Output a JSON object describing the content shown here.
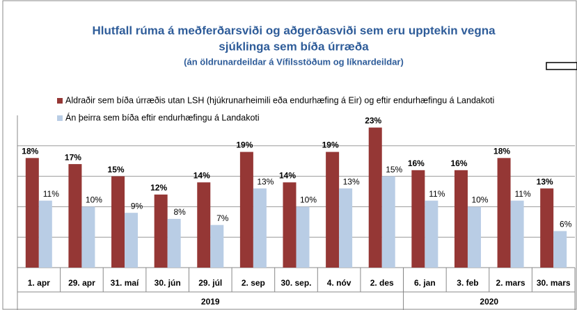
{
  "chart_data": {
    "type": "bar",
    "title": "Hlutfall rúma á meðferðarsviði og aðgerðasviði sem eru upptekin  vegna sjúklinga sem bíða úrræða",
    "title_lines": [
      "Hlutfall rúma á meðferðarsviði og aðgerðasviði sem eru upptekin  vegna",
      "sjúklinga sem bíða úrræða"
    ],
    "subtitle": "(án öldrunardeildar á Vífilsstöðum og líknardeildar)",
    "categories": [
      "1. apr",
      "29. apr",
      "31. maí",
      "30. jún",
      "29. júl",
      "2. sep",
      "30. sep.",
      "4. nóv",
      "2. des",
      "6. jan",
      "3. feb",
      "2. mars",
      "30. mars"
    ],
    "groups": [
      {
        "label": "2019",
        "count": 9
      },
      {
        "label": "2020",
        "count": 4
      }
    ],
    "series": [
      {
        "name": "Aldraðir sem bíða úrræðis utan LSH (hjúkrunarheimili eða endurhæfing á Eir) og eftir endurhæfingu á Landakoti",
        "color": "#953735",
        "values": [
          18,
          17,
          15,
          12,
          14,
          19,
          14,
          19,
          23,
          16,
          16,
          18,
          13
        ],
        "value_labels": [
          "18%",
          "17%",
          "15%",
          "12%",
          "14%",
          "19%",
          "14%",
          "19%",
          "23%",
          "16%",
          "16%",
          "18%",
          "13%"
        ]
      },
      {
        "name": "Án þeirra sem bíða eftir endurhæfingu á Landakoti",
        "color": "#b9cde5",
        "values": [
          11,
          10,
          9,
          8,
          7,
          13,
          10,
          13,
          15,
          11,
          10,
          11,
          6
        ],
        "value_labels": [
          "11%",
          "10%",
          "9%",
          "8%",
          "7%",
          "13%",
          "10%",
          "13%",
          "15%",
          "11%",
          "10%",
          "11%",
          "6%"
        ]
      }
    ],
    "ylim": [
      0,
      25
    ],
    "yticks": [
      0,
      5,
      10,
      15,
      20
    ],
    "grid": true,
    "legend": "top"
  }
}
